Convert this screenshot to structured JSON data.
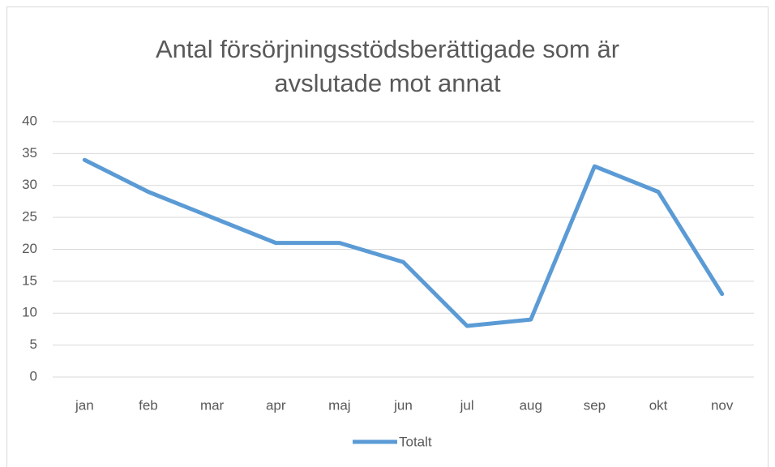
{
  "chart_data": {
    "type": "line",
    "title": "Antal försörjningsstödsberättigade som är avslutade mot annat",
    "categories": [
      "jan",
      "feb",
      "mar",
      "apr",
      "maj",
      "jun",
      "jul",
      "aug",
      "sep",
      "okt",
      "nov"
    ],
    "series": [
      {
        "name": "Totalt",
        "color": "#5b9bd5",
        "values": [
          34,
          29,
          25,
          21,
          21,
          18,
          8,
          9,
          33,
          29,
          13
        ]
      }
    ],
    "ylim": [
      0,
      40
    ],
    "yticks": [
      0,
      5,
      10,
      15,
      20,
      25,
      30,
      35,
      40
    ],
    "grid": true,
    "legend": "bottom"
  }
}
